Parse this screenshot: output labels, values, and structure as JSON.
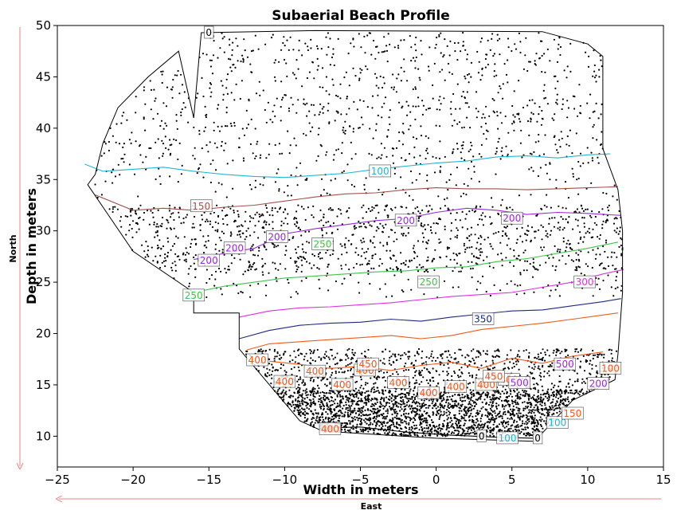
{
  "chart_data": {
    "type": "scatter",
    "title": "Subaerial Beach Profile",
    "xlabel": "Width in meters",
    "ylabel": "Depth in meters",
    "xlim": [
      -25,
      15
    ],
    "ylim": [
      7,
      50
    ],
    "xticks": [
      -25,
      -20,
      -15,
      -10,
      -5,
      0,
      5,
      10,
      15
    ],
    "yticks": [
      10,
      15,
      20,
      25,
      30,
      35,
      40,
      45,
      50
    ],
    "grid": false,
    "direction_labels": {
      "north": "North",
      "east": "East"
    },
    "colors": {
      "outline": "#000000",
      "points": "#000000",
      "arrow": "#f08080",
      "c0": "#000000",
      "c100": "#22b5d6",
      "c150": "#a0524a",
      "c200": "#9a2bd6",
      "c250": "#3ec44a",
      "c300": "#e030e0",
      "c350": "#1a2a80",
      "c400": "#f05a1a",
      "c450": "#f05a1a",
      "c500": "#9a2bd6"
    },
    "boundary": [
      [
        -16,
        41
      ],
      [
        -15.5,
        49.3
      ],
      [
        -8,
        49.5
      ],
      [
        7,
        49.4
      ],
      [
        10,
        48.2
      ],
      [
        11,
        47
      ],
      [
        11,
        38
      ],
      [
        12,
        34
      ],
      [
        12.3,
        30
      ],
      [
        12.3,
        24
      ],
      [
        12,
        18
      ],
      [
        11.8,
        15.5
      ],
      [
        9,
        13.5
      ],
      [
        6.5,
        9.5
      ],
      [
        0,
        9.8
      ],
      [
        -7.5,
        10.5
      ],
      [
        -9,
        11.5
      ],
      [
        -13,
        18.5
      ],
      [
        -13,
        22
      ],
      [
        -16,
        22
      ],
      [
        -16,
        24
      ],
      [
        -20,
        28
      ],
      [
        -23,
        34.5
      ],
      [
        -22.5,
        35.5
      ],
      [
        -22,
        38.5
      ],
      [
        -21,
        42
      ],
      [
        -19,
        45
      ],
      [
        -17,
        47.5
      ]
    ],
    "contours": [
      {
        "level": "100",
        "color_key": "c100",
        "points": [
          [
            -23.2,
            36.5
          ],
          [
            -22,
            35.8
          ],
          [
            -20,
            36
          ],
          [
            -18,
            36.2
          ],
          [
            -16,
            35.8
          ],
          [
            -14,
            35.5
          ],
          [
            -12,
            35.3
          ],
          [
            -10,
            35.2
          ],
          [
            -8,
            35.4
          ],
          [
            -6,
            35.6
          ],
          [
            -4,
            36
          ],
          [
            -2,
            36.3
          ],
          [
            0,
            36.6
          ],
          [
            2,
            36.8
          ],
          [
            4,
            37.2
          ],
          [
            6,
            37.3
          ],
          [
            8,
            37.1
          ],
          [
            10,
            37.4
          ],
          [
            11.5,
            37.5
          ]
        ]
      },
      {
        "level": "150",
        "color_key": "c150",
        "points": [
          [
            -22.5,
            33.5
          ],
          [
            -20,
            32
          ],
          [
            -18,
            32.2
          ],
          [
            -16,
            32
          ],
          [
            -14,
            32.3
          ],
          [
            -12,
            32.5
          ],
          [
            -10,
            32.9
          ],
          [
            -8,
            33.3
          ],
          [
            -6,
            33.6
          ],
          [
            -4,
            33.7
          ],
          [
            -2,
            34
          ],
          [
            0,
            34.2
          ],
          [
            2,
            34.1
          ],
          [
            4,
            34.1
          ],
          [
            6,
            34
          ],
          [
            8,
            34.1
          ],
          [
            10,
            34.2
          ],
          [
            12,
            34.3
          ]
        ]
      },
      {
        "level": "200",
        "color_key": "c200",
        "points": [
          [
            -16,
            27.2
          ],
          [
            -14,
            27.8
          ],
          [
            -12,
            28.3
          ],
          [
            -10,
            29.7
          ],
          [
            -8,
            30.2
          ],
          [
            -6,
            30.6
          ],
          [
            -4,
            31
          ],
          [
            -2,
            31.2
          ],
          [
            0,
            31.8
          ],
          [
            2,
            32.2
          ],
          [
            4,
            32
          ],
          [
            6,
            31.6
          ],
          [
            8,
            31.8
          ],
          [
            10,
            31.7
          ],
          [
            12.2,
            31.5
          ]
        ]
      },
      {
        "level": "250",
        "color_key": "c250",
        "points": [
          [
            -16,
            24
          ],
          [
            -14,
            24.6
          ],
          [
            -12,
            25
          ],
          [
            -10,
            25.4
          ],
          [
            -8,
            25.6
          ],
          [
            -6,
            25.8
          ],
          [
            -4,
            26
          ],
          [
            -2,
            26.1
          ],
          [
            0,
            26.4
          ],
          [
            2,
            26.5
          ],
          [
            4,
            27
          ],
          [
            6,
            27.3
          ],
          [
            8,
            27.8
          ],
          [
            10,
            28.3
          ],
          [
            12,
            28.9
          ]
        ]
      },
      {
        "level": "300",
        "color_key": "c300",
        "points": [
          [
            -13,
            21.6
          ],
          [
            -11,
            22.2
          ],
          [
            -9,
            22.5
          ],
          [
            -7,
            22.6
          ],
          [
            -5,
            22.8
          ],
          [
            -3,
            23
          ],
          [
            -1,
            23.3
          ],
          [
            1,
            23.6
          ],
          [
            3,
            23.8
          ],
          [
            5,
            24
          ],
          [
            7,
            24.5
          ],
          [
            9,
            25
          ],
          [
            11,
            25.8
          ],
          [
            12.3,
            26.2
          ]
        ]
      },
      {
        "level": "350",
        "color_key": "c350",
        "points": [
          [
            -13,
            19.5
          ],
          [
            -11,
            20.3
          ],
          [
            -9,
            20.8
          ],
          [
            -7,
            21
          ],
          [
            -5,
            21.1
          ],
          [
            -3,
            21.4
          ],
          [
            -1,
            21.2
          ],
          [
            1,
            21.6
          ],
          [
            3,
            21.9
          ],
          [
            5,
            22.2
          ],
          [
            7,
            22.3
          ],
          [
            9,
            22.7
          ],
          [
            11,
            23.1
          ],
          [
            12.2,
            23.4
          ]
        ]
      },
      {
        "level": "400",
        "color_key": "c400",
        "points": [
          [
            -12.5,
            18.4
          ],
          [
            -11,
            19
          ],
          [
            -9,
            19.2
          ],
          [
            -7,
            19.4
          ],
          [
            -5,
            19.6
          ],
          [
            -3,
            19.8
          ],
          [
            -1,
            19.5
          ],
          [
            1,
            19.8
          ],
          [
            3,
            20.4
          ],
          [
            5,
            20.7
          ],
          [
            7,
            21
          ],
          [
            9,
            21.4
          ],
          [
            11,
            21.8
          ],
          [
            12,
            22
          ]
        ]
      },
      {
        "level": "450",
        "color_key": "c450",
        "points": [
          [
            -11,
            17.3
          ],
          [
            -9,
            17
          ],
          [
            -7,
            16.6
          ],
          [
            -5,
            16.8
          ],
          [
            -3,
            16.4
          ],
          [
            -1,
            16.9
          ],
          [
            1,
            17.2
          ],
          [
            3,
            16.6
          ],
          [
            5,
            17.6
          ],
          [
            7,
            17.1
          ],
          [
            9,
            17.8
          ],
          [
            11,
            18.2
          ]
        ]
      },
      {
        "level": "0",
        "color_key": "c0",
        "points": [
          [
            -7.5,
            10.8
          ],
          [
            -5,
            10.9
          ],
          [
            -2,
            10.4
          ],
          [
            1,
            10.1
          ],
          [
            4,
            9.9
          ],
          [
            6.5,
            9.8
          ]
        ]
      }
    ],
    "contour_labels": [
      {
        "text": "0",
        "x": -15,
        "y": 49.3,
        "color_key": "c0"
      },
      {
        "text": "100",
        "x": -3.7,
        "y": 35.8,
        "color_key": "c100"
      },
      {
        "text": "100",
        "x": 4.7,
        "y": 9.8,
        "color_key": "c100"
      },
      {
        "text": "100",
        "x": 8,
        "y": 11.3,
        "color_key": "c100"
      },
      {
        "text": "100",
        "x": 11.5,
        "y": 16.6,
        "color_key": "c400"
      },
      {
        "text": "150",
        "x": -15.5,
        "y": 32.4,
        "color_key": "c150"
      },
      {
        "text": "150",
        "x": 9,
        "y": 12.2,
        "color_key": "c400"
      },
      {
        "text": "200",
        "x": -15,
        "y": 27.1,
        "color_key": "c200"
      },
      {
        "text": "200",
        "x": -13.3,
        "y": 28.3,
        "color_key": "c200"
      },
      {
        "text": "200",
        "x": -10.5,
        "y": 29.4,
        "color_key": "c200"
      },
      {
        "text": "200",
        "x": -2,
        "y": 31,
        "color_key": "c200"
      },
      {
        "text": "200",
        "x": 5,
        "y": 31.2,
        "color_key": "c200"
      },
      {
        "text": "200",
        "x": 10.7,
        "y": 15.1,
        "color_key": "c200"
      },
      {
        "text": "250",
        "x": -7.5,
        "y": 28.7,
        "color_key": "c250"
      },
      {
        "text": "250",
        "x": -16,
        "y": 23.7,
        "color_key": "c250"
      },
      {
        "text": "250",
        "x": -0.5,
        "y": 25,
        "color_key": "c250"
      },
      {
        "text": "300",
        "x": 9.8,
        "y": 25,
        "color_key": "c300"
      },
      {
        "text": "350",
        "x": 3.1,
        "y": 21.4,
        "color_key": "c350"
      },
      {
        "text": "400",
        "x": -11.8,
        "y": 17.4,
        "color_key": "c400"
      },
      {
        "text": "400",
        "x": -10,
        "y": 15.3,
        "color_key": "c400"
      },
      {
        "text": "400",
        "x": -8,
        "y": 16.3,
        "color_key": "c400"
      },
      {
        "text": "400",
        "x": -6.2,
        "y": 15,
        "color_key": "c400"
      },
      {
        "text": "400",
        "x": -4.7,
        "y": 16.4,
        "color_key": "c400"
      },
      {
        "text": "400",
        "x": -2.5,
        "y": 15.2,
        "color_key": "c400"
      },
      {
        "text": "400",
        "x": -0.5,
        "y": 14.2,
        "color_key": "c400"
      },
      {
        "text": "400",
        "x": 1.3,
        "y": 14.8,
        "color_key": "c400"
      },
      {
        "text": "400",
        "x": 3.3,
        "y": 15,
        "color_key": "c400"
      },
      {
        "text": "400",
        "x": -7,
        "y": 10.7,
        "color_key": "c400"
      },
      {
        "text": "400",
        "x": 4.8,
        "y": 15.5,
        "color_key": "c400"
      },
      {
        "text": "450",
        "x": -4.5,
        "y": 17,
        "color_key": "c400"
      },
      {
        "text": "450",
        "x": 3.8,
        "y": 15.8,
        "color_key": "c400"
      },
      {
        "text": "500",
        "x": 5.5,
        "y": 15.2,
        "color_key": "c500"
      },
      {
        "text": "500",
        "x": 8.5,
        "y": 17,
        "color_key": "c500"
      },
      {
        "text": "0",
        "x": 3,
        "y": 10,
        "color_key": "c0"
      },
      {
        "text": "0",
        "x": 6.7,
        "y": 9.8,
        "color_key": "c0"
      }
    ]
  }
}
